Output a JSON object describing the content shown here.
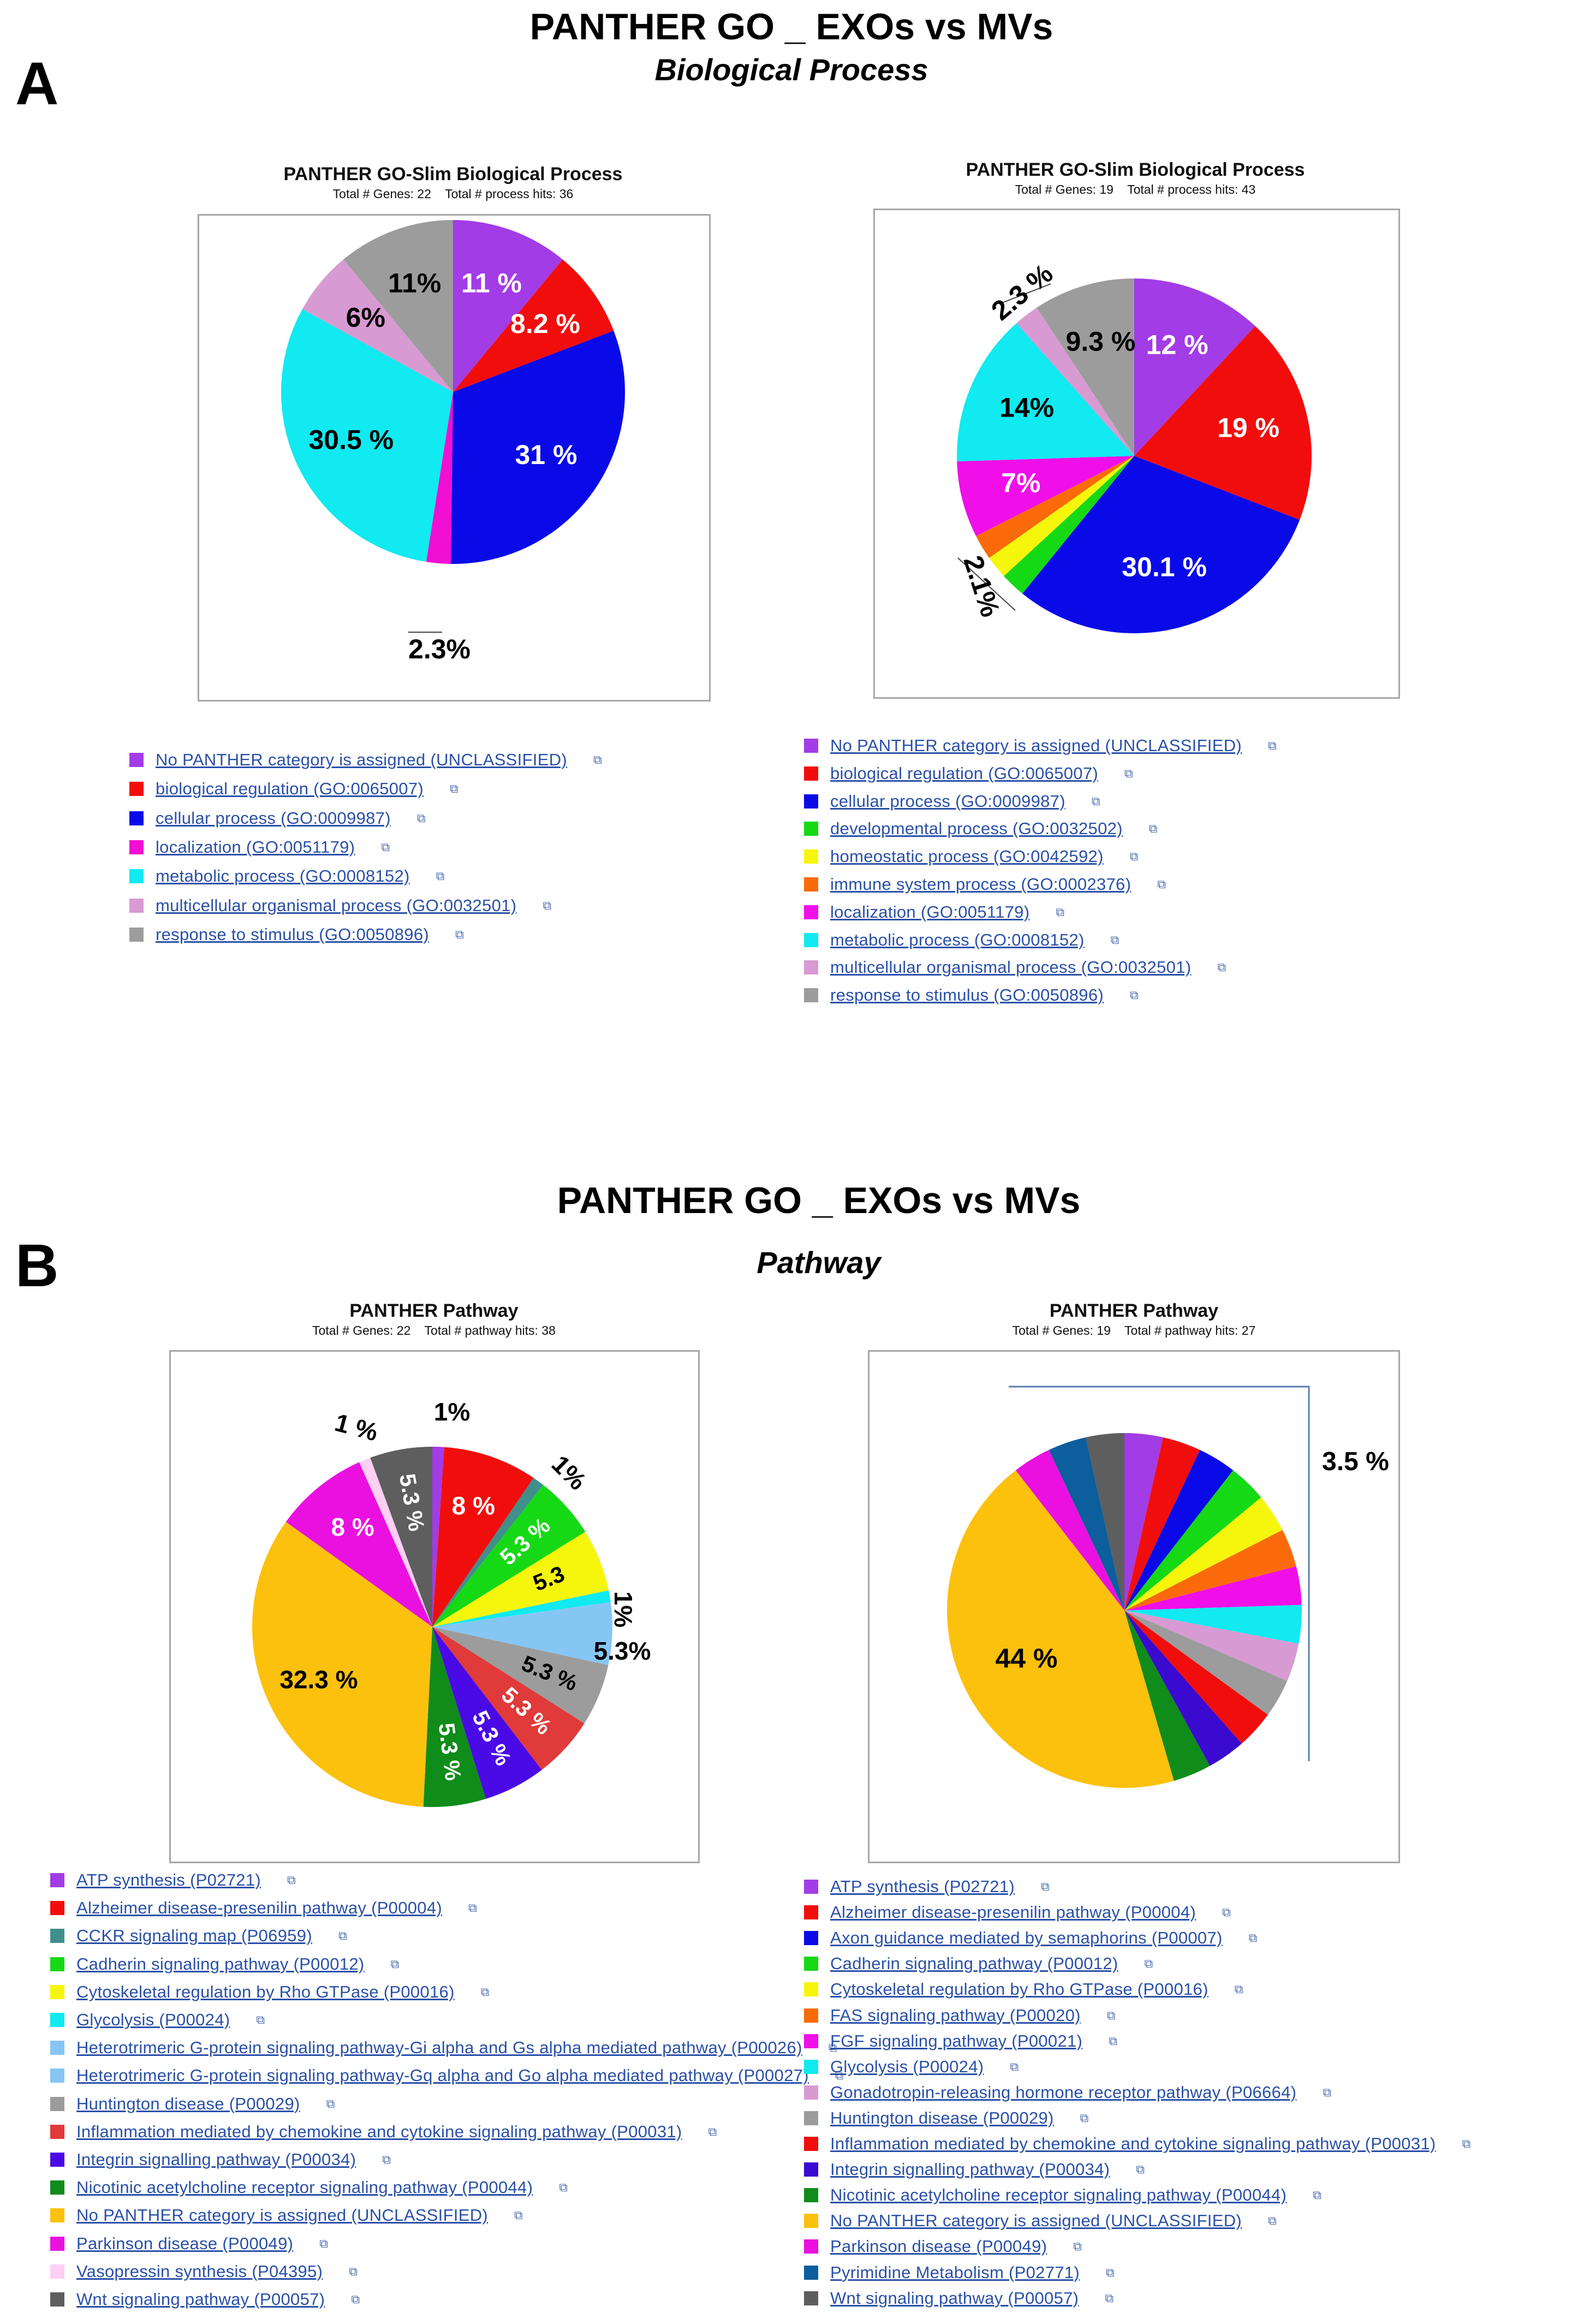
{
  "figure": {
    "panel_a": {
      "letter": "A",
      "title": "PANTHER GO _ EXOs vs MVs",
      "subtitle": "Biological Process"
    },
    "panel_b": {
      "letter": "B",
      "title": "PANTHER GO _ EXOs vs MVs",
      "subtitle": "Pathway"
    }
  },
  "link_icon": "external-link-icon",
  "chart_data": [
    {
      "id": "a-left",
      "type": "pie",
      "title": "PANTHER GO-Slim Biological Process",
      "subtitle": "Total # Genes: 22    Total # process hits: 36",
      "slices": [
        {
          "label": "No PANTHER category is assigned (UNCLASSIFIED)",
          "value": 11,
          "color": "#a23ce6",
          "text": "11 %"
        },
        {
          "label": "biological regulation (GO:0065007)",
          "value": 8.2,
          "color": "#f20d0d",
          "text": "8.2 %"
        },
        {
          "label": "cellular process (GO:0009987)",
          "value": 31,
          "color": "#0a0ae8",
          "text": "31 %"
        },
        {
          "label": "localization (GO:0051179)",
          "value": 2.3,
          "color": "#f00fd2",
          "text": "2.3%"
        },
        {
          "label": "metabolic process (GO:0008152)",
          "value": 30.5,
          "color": "#10eaf0",
          "text": "30.5 %"
        },
        {
          "label": "multicellular organismal process (GO:0032501)",
          "value": 6,
          "color": "#d89ad2",
          "text": "6%"
        },
        {
          "label": "response to stimulus (GO:0050896)",
          "value": 11,
          "color": "#9c9c9c",
          "text": "11%"
        }
      ]
    },
    {
      "id": "a-right",
      "type": "pie",
      "title": "PANTHER GO-Slim Biological Process",
      "subtitle": "Total # Genes: 19    Total # process hits: 43",
      "slices": [
        {
          "label": "No PANTHER category is assigned (UNCLASSIFIED)",
          "value": 12,
          "color": "#a23ce6",
          "text": "12 %"
        },
        {
          "label": "biological regulation (GO:0065007)",
          "value": 19,
          "color": "#f20d0d",
          "text": "19 %"
        },
        {
          "label": "cellular process (GO:0009987)",
          "value": 30.1,
          "color": "#0a0ae8",
          "text": "30.1 %"
        },
        {
          "label": "developmental process (GO:0032502)",
          "value": 2.3,
          "color": "#16d916",
          "text": ""
        },
        {
          "label": "homeostatic process (GO:0042592)",
          "value": 2.1,
          "color": "#f6f60d",
          "text": "2.1%"
        },
        {
          "label": "immune system process (GO:0002376)",
          "value": 2.3,
          "color": "#fa6a0a",
          "text": ""
        },
        {
          "label": "localization (GO:0051179)",
          "value": 7,
          "color": "#f00fe8",
          "text": "7%"
        },
        {
          "label": "metabolic process (GO:0008152)",
          "value": 14,
          "color": "#10eaf0",
          "text": "14%"
        },
        {
          "label": "multicellular organismal process (GO:0032501)",
          "value": 2.3,
          "color": "#d89ad2",
          "text": "2.3 %"
        },
        {
          "label": "response to stimulus (GO:0050896)",
          "value": 9.3,
          "color": "#9c9c9c",
          "text": "9.3 %"
        }
      ]
    },
    {
      "id": "b-left",
      "type": "pie",
      "title": "PANTHER Pathway",
      "subtitle": "Total # Genes: 22    Total # pathway hits: 38",
      "slices": [
        {
          "label": "ATP synthesis (P02721)",
          "value": 1,
          "color": "#a23ce6",
          "text": "1%"
        },
        {
          "label": "Alzheimer disease-presenilin pathway (P00004)",
          "value": 8,
          "color": "#f20d0d",
          "text": "8 %"
        },
        {
          "label": "CCKR signaling map (P06959)",
          "value": 1,
          "color": "#3f8f8c",
          "text": "1%"
        },
        {
          "label": "Cadherin signaling pathway (P00012)",
          "value": 5.3,
          "color": "#16d916",
          "text": "5.3 %"
        },
        {
          "label": "Cytoskeletal regulation by Rho GTPase (P00016)",
          "value": 5.3,
          "color": "#f6f60d",
          "text": "5.3"
        },
        {
          "label": "Glycolysis (P00024)",
          "value": 1,
          "color": "#10eaf0",
          "text": "1%"
        },
        {
          "label": "Heterotrimeric G-protein signaling pathway-Gi alpha and Gs alpha mediated pathway (P00026)",
          "value": 5.3,
          "color": "#86c6f5",
          "text": "5.3%"
        },
        {
          "label": "Heterotrimeric G-protein signaling pathway-Gq alpha and Go alpha mediated pathway (P00027)",
          "value": 0,
          "color": "#86c6f5",
          "text": ""
        },
        {
          "label": "Huntington disease (P00029)",
          "value": 5.3,
          "color": "#9c9c9c",
          "text": "5.3 %"
        },
        {
          "label": "Inflammation mediated by chemokine and cytokine signaling pathway (P00031)",
          "value": 5.3,
          "color": "#e03a3a",
          "text": "5.3 %"
        },
        {
          "label": "Integrin signalling pathway (P00034)",
          "value": 5.3,
          "color": "#4a0ae6",
          "text": "5.3 %"
        },
        {
          "label": "Nicotinic acetylcholine receptor signaling pathway (P00044)",
          "value": 5.3,
          "color": "#0f8c1a",
          "text": "5.3 %"
        },
        {
          "label": "No PANTHER category is assigned (UNCLASSIFIED)",
          "value": 32.3,
          "color": "#fcc10c",
          "text": "32.3 %"
        },
        {
          "label": "Parkinson disease (P00049)",
          "value": 8,
          "color": "#ea10e0",
          "text": "8 %"
        },
        {
          "label": "Vasopressin synthesis (P04395)",
          "value": 1,
          "color": "#ffcff4",
          "text": "1 %"
        },
        {
          "label": "Wnt signaling pathway (P00057)",
          "value": 5.3,
          "color": "#5e5e5e",
          "text": "5.3 %"
        }
      ]
    },
    {
      "id": "b-right",
      "type": "pie",
      "title": "PANTHER Pathway",
      "subtitle": "Total # Genes: 19    Total # pathway hits: 27",
      "annotation": "3.5 %",
      "slices": [
        {
          "label": "ATP synthesis (P02721)",
          "value": 3.5,
          "color": "#a23ce6",
          "text": ""
        },
        {
          "label": "Alzheimer disease-presenilin pathway (P00004)",
          "value": 3.5,
          "color": "#f20d0d",
          "text": ""
        },
        {
          "label": "Axon guidance mediated by semaphorins (P00007)",
          "value": 3.5,
          "color": "#0a0ae8",
          "text": ""
        },
        {
          "label": "Cadherin signaling pathway (P00012)",
          "value": 3.5,
          "color": "#16d916",
          "text": ""
        },
        {
          "label": "Cytoskeletal regulation by Rho GTPase (P00016)",
          "value": 3.5,
          "color": "#f6f60d",
          "text": ""
        },
        {
          "label": "FAS signaling pathway (P00020)",
          "value": 3.5,
          "color": "#fa6a0a",
          "text": ""
        },
        {
          "label": "FGF signaling pathway (P00021)",
          "value": 3.5,
          "color": "#f00fe8",
          "text": ""
        },
        {
          "label": "Glycolysis (P00024)",
          "value": 3.5,
          "color": "#10eaf0",
          "text": ""
        },
        {
          "label": "Gonadotropin-releasing hormone receptor pathway (P06664)",
          "value": 3.5,
          "color": "#d89ad2",
          "text": ""
        },
        {
          "label": "Huntington disease (P00029)",
          "value": 3.5,
          "color": "#9c9c9c",
          "text": ""
        },
        {
          "label": "Inflammation mediated by chemokine and cytokine signaling pathway (P00031)",
          "value": 3.5,
          "color": "#f20d0d",
          "text": ""
        },
        {
          "label": "Integrin signalling pathway (P00034)",
          "value": 3.5,
          "color": "#3a0ad0",
          "text": ""
        },
        {
          "label": "Nicotinic acetylcholine receptor signaling pathway (P00044)",
          "value": 3.5,
          "color": "#0f8c1a",
          "text": ""
        },
        {
          "label": "No PANTHER category is assigned (UNCLASSIFIED)",
          "value": 44,
          "color": "#fcc10c",
          "text": "44  %"
        },
        {
          "label": "Parkinson disease (P00049)",
          "value": 3.5,
          "color": "#ea10e0",
          "text": ""
        },
        {
          "label": "Pyrimidine Metabolism (P02771)",
          "value": 3.5,
          "color": "#0c5e9c",
          "text": ""
        },
        {
          "label": "Wnt signaling pathway (P00057)",
          "value": 3.5,
          "color": "#5e5e5e",
          "text": ""
        }
      ]
    }
  ]
}
